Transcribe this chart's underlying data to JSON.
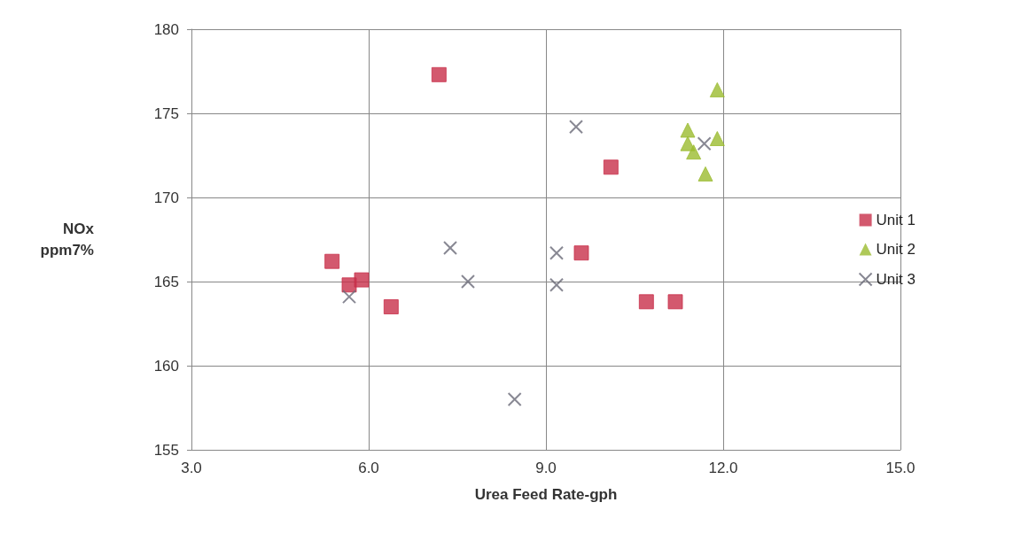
{
  "chart_data": {
    "type": "scatter",
    "xlabel": "Urea Feed Rate-gph",
    "ylabel": "NOx\nppm7%",
    "xlim": [
      3,
      15
    ],
    "xticks": [
      {
        "value": 3,
        "label": "3.0"
      },
      {
        "value": 6,
        "label": "6.0"
      },
      {
        "value": 9,
        "label": "9.0"
      },
      {
        "value": 12,
        "label": "12.0"
      },
      {
        "value": 15,
        "label": "15.0"
      }
    ],
    "ylim": [
      155,
      180
    ],
    "yticks": [
      155,
      160,
      165,
      170,
      175,
      180
    ],
    "grid": true,
    "legend": "right",
    "series": [
      {
        "name": "Unit 1",
        "color": "#c8304a",
        "marker": "square",
        "x": [
          7.19,
          5.38,
          5.67,
          5.88,
          6.38,
          10.1,
          9.6,
          10.7,
          11.19
        ],
        "values": [
          177.3,
          166.2,
          164.8,
          165.1,
          163.5,
          171.8,
          166.7,
          163.8,
          163.8
        ]
      },
      {
        "name": "Unit 2",
        "color": "#9bbb30",
        "marker": "triangle",
        "x": [
          11.9,
          11.4,
          11.4,
          11.5,
          11.9,
          11.7
        ],
        "values": [
          176.4,
          174.0,
          173.2,
          172.7,
          173.5,
          171.4
        ]
      },
      {
        "name": "Unit 3",
        "color": "#6a6a78",
        "marker": "cross",
        "x": [
          9.51,
          11.68,
          9.18,
          9.18,
          7.38,
          7.68,
          5.67,
          8.47
        ],
        "values": [
          174.2,
          173.2,
          166.7,
          164.8,
          167.0,
          165.0,
          164.1,
          158.0
        ]
      }
    ]
  }
}
